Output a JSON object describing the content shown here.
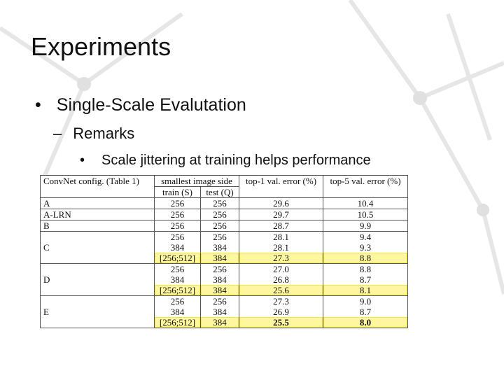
{
  "header": {
    "title": "Experiments"
  },
  "bullets": {
    "level1": "Single-Scale Evalutation",
    "level2": "Remarks",
    "level3": "Scale jittering at training helps performance"
  },
  "table": {
    "headers": {
      "config": "ConvNet config. (Table 1)",
      "side": "smallest image side",
      "train": "train (S)",
      "test": "test (Q)",
      "top1": "top-1 val. error (%)",
      "top5": "top-5 val. error (%)"
    },
    "groups": [
      {
        "config": "A",
        "rows": [
          [
            "256",
            "256",
            "29.6",
            "10.4"
          ]
        ]
      },
      {
        "config": "A-LRN",
        "rows": [
          [
            "256",
            "256",
            "29.7",
            "10.5"
          ]
        ]
      },
      {
        "config": "B",
        "rows": [
          [
            "256",
            "256",
            "28.7",
            "9.9"
          ]
        ]
      },
      {
        "config": "C",
        "rows": [
          [
            "256",
            "256",
            "28.1",
            "9.4"
          ],
          [
            "384",
            "384",
            "28.1",
            "9.3"
          ],
          [
            "[256;512]",
            "384",
            "27.3",
            "8.8"
          ]
        ]
      },
      {
        "config": "D",
        "rows": [
          [
            "256",
            "256",
            "27.0",
            "8.8"
          ],
          [
            "384",
            "384",
            "26.8",
            "8.7"
          ],
          [
            "[256;512]",
            "384",
            "25.6",
            "8.1"
          ]
        ]
      },
      {
        "config": "E",
        "rows": [
          [
            "256",
            "256",
            "27.3",
            "9.0"
          ],
          [
            "384",
            "384",
            "26.9",
            "8.7"
          ],
          [
            "[256;512]",
            "384",
            "25.5",
            "8.0"
          ]
        ]
      }
    ]
  }
}
